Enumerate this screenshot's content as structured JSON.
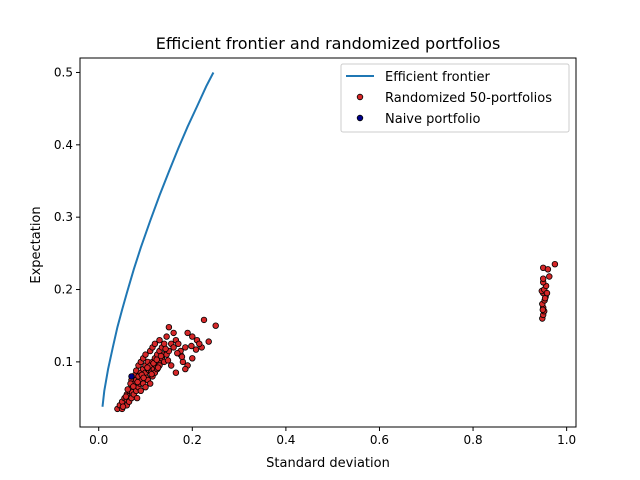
{
  "chart_data": {
    "type": "scatter",
    "title": "Efficient frontier and randomized portfolios",
    "xlabel": "Standard deviation",
    "ylabel": "Expectation",
    "xlim": [
      -0.04,
      1.02
    ],
    "ylim": [
      0.01,
      0.52
    ],
    "xticks": [
      0.0,
      0.2,
      0.4,
      0.6,
      0.8,
      1.0
    ],
    "xtick_labels": [
      "0.0",
      "0.2",
      "0.4",
      "0.6",
      "0.8",
      "1.0"
    ],
    "yticks": [
      0.1,
      0.2,
      0.3,
      0.4,
      0.5
    ],
    "ytick_labels": [
      "0.1",
      "0.2",
      "0.3",
      "0.4",
      "0.5"
    ],
    "grid": false,
    "legend_position": "top-right",
    "legend": [
      "Efficient frontier",
      "Randomized 50-portfolios",
      "Naive portfolio"
    ],
    "colors": {
      "frontier": "#1f77b4",
      "random_fill": "#d62728",
      "naive_fill": "#00008b",
      "marker_edge": "#000000"
    },
    "series": [
      {
        "name": "Efficient frontier",
        "kind": "line",
        "x": [
          0.008,
          0.012,
          0.02,
          0.03,
          0.04,
          0.05,
          0.06,
          0.075,
          0.09,
          0.11,
          0.13,
          0.15,
          0.17,
          0.19,
          0.21,
          0.23,
          0.245
        ],
        "y": [
          0.038,
          0.06,
          0.09,
          0.12,
          0.148,
          0.172,
          0.195,
          0.228,
          0.258,
          0.295,
          0.33,
          0.363,
          0.395,
          0.425,
          0.453,
          0.481,
          0.5
        ]
      },
      {
        "name": "Randomized 50-portfolios",
        "kind": "scatter",
        "x": [
          0.04,
          0.045,
          0.05,
          0.05,
          0.055,
          0.06,
          0.06,
          0.06,
          0.065,
          0.065,
          0.07,
          0.07,
          0.07,
          0.072,
          0.075,
          0.075,
          0.078,
          0.08,
          0.08,
          0.08,
          0.082,
          0.085,
          0.085,
          0.085,
          0.088,
          0.09,
          0.09,
          0.09,
          0.092,
          0.095,
          0.095,
          0.095,
          0.098,
          0.1,
          0.1,
          0.1,
          0.1,
          0.102,
          0.105,
          0.105,
          0.105,
          0.108,
          0.11,
          0.11,
          0.11,
          0.112,
          0.115,
          0.115,
          0.115,
          0.118,
          0.12,
          0.12,
          0.12,
          0.122,
          0.125,
          0.125,
          0.128,
          0.13,
          0.13,
          0.13,
          0.135,
          0.135,
          0.138,
          0.14,
          0.14,
          0.145,
          0.145,
          0.15,
          0.15,
          0.155,
          0.16,
          0.16,
          0.165,
          0.17,
          0.175,
          0.18,
          0.185,
          0.19,
          0.2,
          0.21,
          0.22,
          0.225,
          0.235,
          0.25,
          0.2,
          0.19,
          0.175,
          0.165,
          0.215,
          0.185,
          0.155,
          0.062,
          0.058,
          0.068,
          0.074,
          0.083,
          0.092,
          0.096,
          0.104,
          0.113,
          0.117,
          0.124,
          0.127,
          0.133,
          0.143,
          0.148,
          0.168,
          0.178,
          0.198,
          0.208,
          0.052,
          0.948,
          0.95,
          0.952,
          0.95,
          0.948,
          0.953,
          0.955,
          0.95,
          0.947,
          0.952,
          0.956,
          0.95,
          0.949,
          0.954,
          0.958,
          0.95,
          0.96,
          0.963,
          0.975,
          0.95
        ],
        "y": [
          0.035,
          0.04,
          0.045,
          0.035,
          0.05,
          0.04,
          0.055,
          0.048,
          0.045,
          0.06,
          0.05,
          0.065,
          0.075,
          0.058,
          0.055,
          0.07,
          0.082,
          0.06,
          0.075,
          0.088,
          0.05,
          0.065,
          0.08,
          0.095,
          0.07,
          0.06,
          0.085,
          0.1,
          0.075,
          0.07,
          0.09,
          0.105,
          0.08,
          0.065,
          0.085,
          0.095,
          0.11,
          0.078,
          0.075,
          0.09,
          0.1,
          0.088,
          0.07,
          0.095,
          0.115,
          0.085,
          0.08,
          0.1,
          0.12,
          0.09,
          0.085,
          0.105,
          0.125,
          0.095,
          0.09,
          0.11,
          0.1,
          0.095,
          0.115,
          0.13,
          0.105,
          0.12,
          0.11,
          0.1,
          0.125,
          0.11,
          0.135,
          0.115,
          0.148,
          0.125,
          0.12,
          0.14,
          0.13,
          0.125,
          0.11,
          0.1,
          0.12,
          0.095,
          0.105,
          0.13,
          0.12,
          0.158,
          0.128,
          0.15,
          0.135,
          0.14,
          0.115,
          0.085,
          0.125,
          0.09,
          0.095,
          0.062,
          0.052,
          0.07,
          0.066,
          0.072,
          0.082,
          0.078,
          0.092,
          0.083,
          0.098,
          0.103,
          0.092,
          0.108,
          0.118,
          0.102,
          0.112,
          0.107,
          0.122,
          0.117,
          0.038,
          0.16,
          0.165,
          0.17,
          0.175,
          0.18,
          0.185,
          0.19,
          0.195,
          0.198,
          0.2,
          0.205,
          0.21,
          0.172,
          0.188,
          0.195,
          0.23,
          0.228,
          0.218,
          0.235,
          0.215
        ],
        "marker": "circle"
      },
      {
        "name": "Naive portfolio",
        "kind": "scatter",
        "x": [
          0.07
        ],
        "y": [
          0.08
        ],
        "marker": "circle"
      }
    ]
  }
}
